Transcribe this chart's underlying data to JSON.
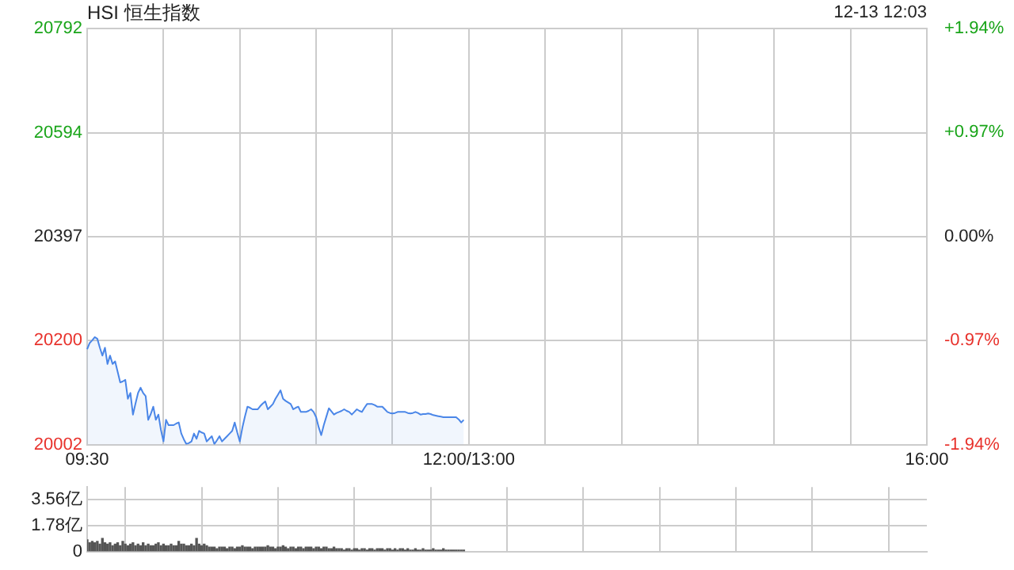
{
  "chart_data": [
    {
      "type": "area",
      "title": "HSI 恒生指数",
      "annotations": [
        "12-13 12:03"
      ],
      "grid": true,
      "marker": "none",
      "categories": [
        "09:30",
        null,
        null,
        null,
        null,
        null,
        null,
        null,
        null,
        null,
        null,
        null,
        null,
        null,
        null,
        null,
        null,
        null,
        null,
        null,
        null,
        null,
        null,
        null,
        null,
        null,
        null,
        null,
        null,
        null,
        null,
        null,
        null,
        null,
        null,
        null,
        null,
        null,
        null,
        null,
        null,
        null,
        null,
        null,
        null,
        null,
        null,
        null,
        null,
        null,
        null,
        null,
        null,
        null,
        null,
        null,
        null,
        null,
        null,
        null,
        null,
        null,
        null,
        null,
        null,
        null,
        null,
        null,
        null,
        null,
        null,
        null,
        null,
        null,
        null,
        null,
        null,
        null,
        null,
        null,
        null,
        null,
        null,
        null,
        null,
        null,
        null,
        null,
        null,
        null,
        null,
        null,
        null,
        null,
        null,
        null,
        null,
        null,
        null,
        null,
        null,
        null,
        null,
        null,
        null,
        null,
        null,
        null,
        null,
        null,
        null,
        null,
        null,
        null,
        null,
        null,
        null,
        null,
        null,
        null,
        null,
        null,
        null,
        null,
        null,
        null,
        null,
        null,
        null,
        null,
        null,
        null,
        null,
        null,
        null,
        null,
        null,
        null,
        null,
        null,
        null,
        null,
        null,
        null,
        null,
        null,
        null,
        null,
        null,
        null,
        "12:00/13:00",
        null,
        null,
        null,
        null,
        null,
        null,
        null,
        null,
        null,
        null,
        null,
        null,
        null,
        null,
        null,
        null,
        null,
        null,
        null,
        null,
        null,
        null,
        null,
        null,
        null,
        null,
        null,
        null,
        null,
        null,
        null,
        null,
        null,
        null,
        null,
        null,
        null,
        null,
        null,
        null,
        null,
        null,
        null,
        null,
        null,
        null,
        null,
        null,
        null,
        null,
        null,
        null,
        null,
        null,
        null,
        null,
        null,
        null,
        null,
        null,
        null,
        null,
        null,
        null,
        null,
        null,
        null,
        null,
        null,
        null,
        null,
        null,
        null,
        null,
        null,
        null,
        null,
        null,
        null,
        null,
        null,
        null,
        null,
        null,
        null,
        null,
        null,
        null,
        null,
        null,
        null,
        null,
        null,
        null,
        null,
        null,
        null,
        null,
        null,
        null,
        null,
        null,
        null,
        null,
        null,
        null,
        null,
        null,
        null,
        null,
        null,
        null,
        null,
        null,
        null,
        null,
        null,
        null,
        null,
        null,
        null,
        null,
        null,
        null,
        null,
        null,
        null,
        null,
        null,
        null,
        null,
        null,
        null,
        null,
        null,
        null,
        null,
        null,
        null,
        null,
        null,
        null,
        null,
        null,
        null,
        null,
        null,
        null,
        null,
        null,
        null,
        null,
        null,
        null,
        null,
        null,
        null,
        null,
        null,
        null,
        null,
        null,
        null,
        null,
        null,
        null,
        null,
        null,
        null,
        null,
        null,
        null,
        null,
        null,
        null,
        null,
        null,
        null,
        null,
        "16:00"
      ],
      "ylim": [
        20002,
        20792
      ],
      "yticks": [
        20002,
        20200,
        20397,
        20594,
        20792
      ],
      "y2lim": [
        -1.94,
        1.94
      ],
      "y2ticks": [
        {
          "value": -1.94,
          "label": "-1.94%"
        },
        {
          "value": -0.97,
          "label": "-0.97%"
        },
        {
          "value": 0,
          "label": "0.00%"
        },
        {
          "value": 0.97,
          "label": "+0.97%"
        },
        {
          "value": 1.94,
          "label": "+1.94%"
        }
      ],
      "series": [
        {
          "color": "#4a86e8",
          "values": [
            20183,
            20195,
            20200,
            20206,
            20203,
            20186,
            20171,
            20186,
            20155,
            20171,
            20155,
            20160,
            20140,
            20120,
            20122,
            20125,
            20089,
            20100,
            20059,
            20080,
            20100,
            20110,
            20100,
            20094,
            20049,
            20060,
            20074,
            20049,
            20059,
            20030,
            20008,
            20049,
            20039,
            20039,
            20039,
            20042,
            20044,
            20023,
            20012,
            20003,
            20005,
            20008,
            20023,
            20013,
            20028,
            20025,
            20023,
            20008,
            20013,
            20018,
            20003,
            20010,
            20018,
            20008,
            20013,
            20018,
            20023,
            20028,
            20044,
            20025,
            20008,
            20034,
            20055,
            20074,
            20072,
            20069,
            20069,
            20069,
            20075,
            20080,
            20084,
            20069,
            20074,
            20079,
            20089,
            20097,
            20105,
            20089,
            20085,
            20082,
            20079,
            20069,
            20072,
            20074,
            20064,
            20064,
            20064,
            20066,
            20069,
            20064,
            20054,
            20035,
            20020,
            20039,
            20055,
            20071,
            20065,
            20059,
            20062,
            20064,
            20066,
            20069,
            20066,
            20064,
            20059,
            20064,
            20069,
            20066,
            20064,
            20072,
            20079,
            20079,
            20079,
            20077,
            20074,
            20074,
            20074,
            20069,
            20064,
            20062,
            20061,
            20062,
            20064,
            20064,
            20064,
            20064,
            20062,
            20061,
            20062,
            20064,
            20062,
            20059,
            20060,
            20060,
            20061,
            20060,
            20058,
            20057,
            20056,
            20055,
            20054,
            20054,
            20054,
            20054,
            20054,
            20054,
            20050,
            20044,
            20049,
            null,
            null,
            null,
            null,
            null,
            null,
            null,
            null,
            null,
            null,
            null,
            null,
            null,
            null,
            null,
            null,
            null,
            null,
            null,
            null,
            null,
            null,
            null,
            null,
            null,
            null,
            null,
            null,
            null,
            null,
            null,
            null,
            null,
            null,
            null,
            null,
            null,
            null,
            null,
            null,
            null,
            null,
            null,
            null,
            null,
            null,
            null,
            null,
            null,
            null,
            null,
            null,
            null,
            null,
            null,
            null,
            null,
            null,
            null,
            null,
            null,
            null,
            null,
            null,
            null,
            null,
            null,
            null,
            null,
            null,
            null,
            null,
            null,
            null,
            null,
            null,
            null,
            null,
            null,
            null,
            null,
            null,
            null,
            null,
            null,
            null,
            null,
            null,
            null,
            null,
            null,
            null,
            null,
            null,
            null,
            null,
            null,
            null,
            null,
            null,
            null,
            null,
            null,
            null,
            null,
            null,
            null,
            null,
            null,
            null,
            null,
            null,
            null,
            null,
            null,
            null,
            null,
            null,
            null,
            null,
            null,
            null,
            null,
            null,
            null,
            null,
            null,
            null,
            null,
            null,
            null,
            null,
            null,
            null,
            null,
            null,
            null,
            null,
            null,
            null,
            null,
            null,
            null,
            null,
            null,
            null,
            null,
            null,
            null,
            null,
            null,
            null,
            null,
            null,
            null,
            null,
            null,
            null,
            null,
            null,
            null,
            null,
            null,
            null,
            null,
            null,
            null,
            null,
            null,
            null,
            null,
            null,
            null,
            null,
            null,
            null,
            null,
            null,
            null,
            null,
            null,
            null
          ]
        }
      ]
    },
    {
      "type": "bar",
      "grid": true,
      "tick_labels": "y",
      "categories": [
        null,
        null,
        null,
        null,
        null,
        null,
        null,
        null,
        null,
        null,
        null,
        null,
        null,
        null,
        null,
        null,
        null,
        null,
        null,
        null,
        null,
        null,
        null,
        null,
        null,
        null,
        null,
        null,
        null,
        null,
        null,
        null,
        null,
        null,
        null,
        null,
        null,
        null,
        null,
        null,
        null,
        null,
        null,
        null,
        null,
        null,
        null,
        null,
        null,
        null,
        null,
        null,
        null,
        null,
        null,
        null,
        null,
        null,
        null,
        null,
        null,
        null,
        null,
        null,
        null,
        null,
        null,
        null,
        null,
        null,
        null,
        null,
        null,
        null,
        null,
        null,
        null,
        null,
        null,
        null,
        null,
        null,
        null,
        null,
        null,
        null,
        null,
        null,
        null,
        null,
        null,
        null,
        null,
        null,
        null,
        null,
        null,
        null,
        null,
        null,
        null,
        null,
        null,
        null,
        null,
        null,
        null,
        null,
        null,
        null,
        null,
        null,
        null,
        null,
        null,
        null,
        null,
        null,
        null,
        null,
        null,
        null,
        null,
        null,
        null,
        null,
        null,
        null,
        null,
        null,
        null,
        null,
        null,
        null,
        null,
        null,
        null,
        null,
        null,
        null,
        null,
        null,
        null,
        null,
        null,
        null,
        null,
        null,
        null,
        null,
        null,
        null,
        null,
        null,
        null,
        null,
        null,
        null,
        null,
        null,
        null,
        null,
        null,
        null,
        null,
        null,
        null,
        null,
        null,
        null,
        null,
        null,
        null,
        null,
        null,
        null,
        null,
        null,
        null,
        null,
        null,
        null,
        null,
        null,
        null,
        null,
        null,
        null,
        null,
        null,
        null,
        null,
        null,
        null,
        null,
        null,
        null,
        null,
        null,
        null,
        null,
        null,
        null,
        null,
        null,
        null,
        null,
        null,
        null,
        null,
        null,
        null,
        null,
        null,
        null,
        null,
        null,
        null,
        null,
        null,
        null,
        null,
        null,
        null,
        null,
        null,
        null,
        null,
        null,
        null,
        null,
        null,
        null,
        null,
        null,
        null,
        null,
        null,
        null,
        null,
        null,
        null,
        null,
        null,
        null,
        null,
        null,
        null,
        null,
        null,
        null,
        null,
        null,
        null,
        null,
        null,
        null,
        null,
        null,
        null,
        null,
        null,
        null,
        null,
        null,
        null,
        null,
        null,
        null,
        null,
        null,
        null,
        null,
        null,
        null,
        null,
        null,
        null,
        null,
        null,
        null,
        null,
        null,
        null,
        null,
        null,
        null,
        null,
        null,
        null,
        null,
        null,
        null,
        null,
        null,
        null,
        null,
        null,
        null,
        null,
        null,
        null,
        null,
        null,
        null,
        null,
        null,
        null,
        null,
        null,
        null,
        null,
        null,
        null,
        null,
        null,
        null,
        null,
        null,
        null,
        null,
        null,
        null,
        null,
        null,
        null,
        null,
        null,
        null,
        null,
        null
      ],
      "ylim": [
        0,
        4.4
      ],
      "yticks": [
        0,
        {
          "value": 1.78,
          "label": "1.78亿"
        },
        {
          "value": 3.56,
          "label": "3.56亿"
        }
      ],
      "series": [
        {
          "color": "#555555",
          "values": [
            0.8,
            0.6,
            0.7,
            0.6,
            0.7,
            0.5,
            0.9,
            0.6,
            0.5,
            0.6,
            0.4,
            0.5,
            0.6,
            0.4,
            0.7,
            0.5,
            0.4,
            0.5,
            0.6,
            0.4,
            0.5,
            0.4,
            0.6,
            0.4,
            0.5,
            0.4,
            0.4,
            0.5,
            0.6,
            0.4,
            0.5,
            0.4,
            0.4,
            0.5,
            0.4,
            0.4,
            0.7,
            0.5,
            0.5,
            0.4,
            0.4,
            0.5,
            0.4,
            0.9,
            0.5,
            0.4,
            0.5,
            0.4,
            0.3,
            0.3,
            0.3,
            0.2,
            0.3,
            0.3,
            0.3,
            0.2,
            0.3,
            0.3,
            0.2,
            0.3,
            0.3,
            0.4,
            0.3,
            0.3,
            0.3,
            0.2,
            0.3,
            0.3,
            0.3,
            0.3,
            0.3,
            0.4,
            0.3,
            0.3,
            0.2,
            0.3,
            0.3,
            0.4,
            0.3,
            0.2,
            0.3,
            0.3,
            0.2,
            0.3,
            0.3,
            0.2,
            0.3,
            0.3,
            0.3,
            0.2,
            0.3,
            0.3,
            0.2,
            0.3,
            0.3,
            0.2,
            0.2,
            0.3,
            0.2,
            0.2,
            0.2,
            0.1,
            0.2,
            0.2,
            0.1,
            0.2,
            0.2,
            0.1,
            0.2,
            0.2,
            0.1,
            0.2,
            0.2,
            0.1,
            0.2,
            0.2,
            0.2,
            0.1,
            0.2,
            0.2,
            0.1,
            0.2,
            0.1,
            0.2,
            0.2,
            0.1,
            0.2,
            0.1,
            0.1,
            0.2,
            0.1,
            0.1,
            0.2,
            0.1,
            0.1,
            0.1,
            0.2,
            0.1,
            0.1,
            0.1,
            0.2,
            0.1,
            0.1,
            0.1,
            0.1,
            0.1,
            0.1,
            0.1,
            0.1,
            null,
            null,
            null,
            null,
            null,
            null,
            null,
            null,
            null,
            null,
            null,
            null,
            null,
            null,
            null,
            null,
            null,
            null,
            null,
            null,
            null,
            null,
            null,
            null,
            null,
            null,
            null,
            null,
            null,
            null,
            null,
            null,
            null,
            null,
            null,
            null,
            null,
            null,
            null,
            null,
            null,
            null,
            null,
            null,
            null,
            null,
            null,
            null,
            null,
            null,
            null,
            null,
            null,
            null,
            null,
            null,
            null,
            null,
            null,
            null,
            null,
            null,
            null,
            null,
            null,
            null,
            null,
            null,
            null,
            null,
            null,
            null,
            null,
            null,
            null,
            null,
            null,
            null,
            null,
            null,
            null,
            null,
            null,
            null,
            null,
            null,
            null,
            null,
            null,
            null,
            null,
            null,
            null,
            null,
            null,
            null,
            null,
            null,
            null,
            null,
            null,
            null,
            null,
            null,
            null,
            null,
            null,
            null,
            null,
            null,
            null,
            null,
            null,
            null,
            null,
            null,
            null,
            null,
            null,
            null,
            null,
            null,
            null,
            null,
            null,
            null,
            null,
            null,
            null,
            null,
            null,
            null,
            null,
            null,
            null,
            null,
            null,
            null,
            null,
            null,
            null,
            null,
            null,
            null,
            null,
            null,
            null,
            null,
            null,
            null,
            null,
            null,
            null,
            null,
            null,
            null,
            null,
            null,
            null,
            null,
            null,
            null,
            null,
            null,
            null,
            null,
            null,
            null,
            null,
            null,
            null,
            null,
            null,
            null,
            null,
            null,
            null,
            null,
            null,
            null,
            null,
            null
          ]
        }
      ]
    }
  ]
}
